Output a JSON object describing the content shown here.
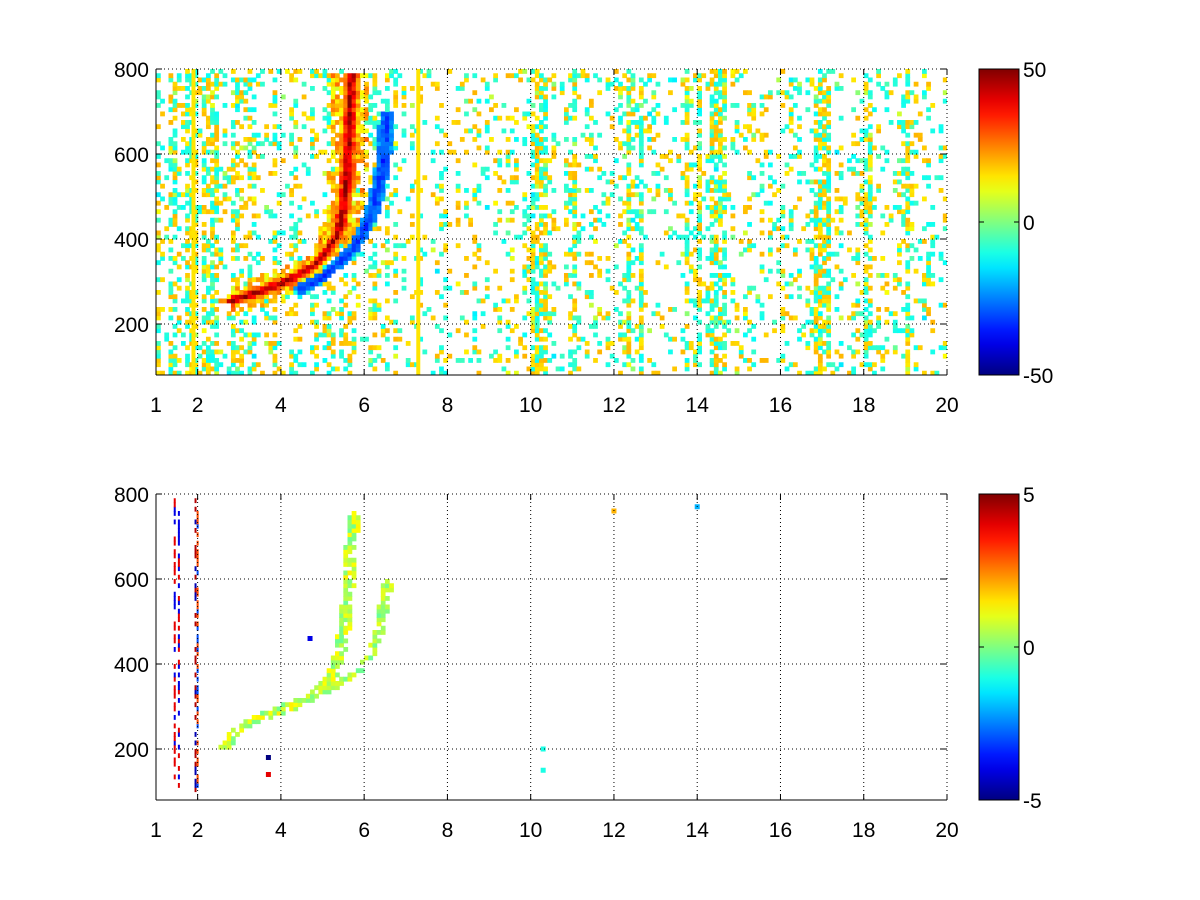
{
  "figure": {
    "background": "#ffffff",
    "colormap": "jet"
  },
  "chart_data": [
    {
      "type": "heatmap",
      "title": "",
      "xlabel": "",
      "ylabel": "",
      "xlim": [
        1,
        20
      ],
      "ylim": [
        80,
        800
      ],
      "grid": true,
      "x_ticks": [
        1,
        2,
        4,
        6,
        8,
        10,
        12,
        14,
        16,
        18,
        20
      ],
      "x_tick_labels": [
        "1",
        "2",
        "4",
        "6",
        "8",
        "10",
        "12",
        "14",
        "16",
        "18",
        "20"
      ],
      "y_ticks": [
        200,
        400,
        600,
        800
      ],
      "y_tick_labels": [
        "200",
        "400",
        "600",
        "800"
      ],
      "colorbar": {
        "min": -50,
        "max": 50,
        "ticks": [
          -50,
          0,
          50
        ],
        "tick_labels": [
          "-50",
          "0",
          "50"
        ]
      },
      "features": {
        "ridge_positive": [
          [
            2.8,
            255
          ],
          [
            3.2,
            268
          ],
          [
            3.6,
            282
          ],
          [
            4.0,
            296
          ],
          [
            4.4,
            315
          ],
          [
            4.8,
            340
          ],
          [
            5.1,
            370
          ],
          [
            5.35,
            410
          ],
          [
            5.5,
            470
          ],
          [
            5.6,
            560
          ],
          [
            5.65,
            680
          ],
          [
            5.7,
            790
          ]
        ],
        "ridge_negative": [
          [
            4.4,
            280
          ],
          [
            4.9,
            305
          ],
          [
            5.3,
            335
          ],
          [
            5.7,
            375
          ],
          [
            6.0,
            420
          ],
          [
            6.25,
            480
          ],
          [
            6.4,
            550
          ],
          [
            6.5,
            620
          ],
          [
            6.55,
            700
          ]
        ],
        "vertical_lines": [
          {
            "x": 7.3,
            "value": 15
          },
          {
            "x": 1.9,
            "value": 15
          }
        ]
      }
    },
    {
      "type": "heatmap",
      "title": "",
      "xlabel": "",
      "ylabel": "",
      "xlim": [
        1,
        20
      ],
      "ylim": [
        80,
        800
      ],
      "grid": true,
      "x_ticks": [
        1,
        2,
        4,
        6,
        8,
        10,
        12,
        14,
        16,
        18,
        20
      ],
      "x_tick_labels": [
        "1",
        "2",
        "4",
        "6",
        "8",
        "10",
        "12",
        "14",
        "16",
        "18",
        "20"
      ],
      "y_ticks": [
        200,
        400,
        600,
        800
      ],
      "y_tick_labels": [
        "200",
        "400",
        "600",
        "800"
      ],
      "colorbar": {
        "min": -5,
        "max": 5,
        "ticks": [
          -5,
          0,
          5
        ],
        "tick_labels": [
          "-5",
          "0",
          "5"
        ]
      },
      "features": {
        "ridge_a": [
          [
            2.6,
            200
          ],
          [
            3.0,
            250
          ],
          [
            3.5,
            275
          ],
          [
            4.0,
            292
          ],
          [
            4.5,
            310
          ],
          [
            4.9,
            335
          ],
          [
            5.2,
            370
          ],
          [
            5.4,
            420
          ],
          [
            5.55,
            500
          ],
          [
            5.65,
            600
          ],
          [
            5.7,
            700
          ],
          [
            5.75,
            750
          ]
        ],
        "ridge_b": [
          [
            5.0,
            335
          ],
          [
            5.5,
            360
          ],
          [
            5.9,
            390
          ],
          [
            6.2,
            430
          ],
          [
            6.4,
            490
          ],
          [
            6.5,
            560
          ],
          [
            6.6,
            600
          ]
        ],
        "outliers": [
          {
            "x": 14.0,
            "y": 770,
            "value": -2
          },
          {
            "x": 12.0,
            "y": 760,
            "value": 2
          },
          {
            "x": 10.3,
            "y": 200,
            "value": -1
          },
          {
            "x": 10.3,
            "y": 150,
            "value": -1
          },
          {
            "x": 3.7,
            "y": 140,
            "value": 4
          },
          {
            "x": 3.7,
            "y": 180,
            "value": -5
          },
          {
            "x": 4.7,
            "y": 460,
            "value": -4
          }
        ]
      }
    }
  ]
}
